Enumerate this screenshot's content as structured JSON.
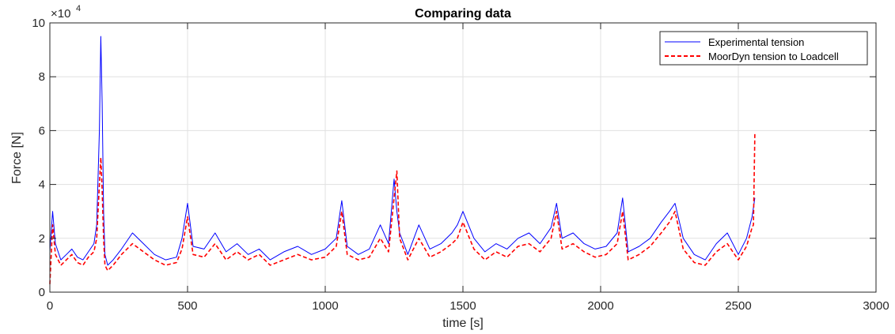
{
  "chart_data": {
    "type": "line",
    "title": "Comparing data",
    "xlabel": "time [s]",
    "ylabel": "Force [N]",
    "y_exponent_label": "×10",
    "y_exponent_power": "4",
    "xlim": [
      0,
      3000
    ],
    "ylim": [
      0,
      100000
    ],
    "xticks": [
      0,
      500,
      1000,
      1500,
      2000,
      2500,
      3000
    ],
    "xtick_labels": [
      "0",
      "500",
      "1000",
      "1500",
      "2000",
      "2500",
      "3000"
    ],
    "yticks": [
      0,
      20000,
      40000,
      60000,
      80000,
      100000
    ],
    "ytick_labels": [
      "0",
      "2",
      "4",
      "6",
      "8",
      "10"
    ],
    "grid": true,
    "legend_position": "top-right",
    "series": [
      {
        "name": "Experimental tension",
        "color": "#0000ff",
        "style": "solid",
        "x": [
          0,
          10,
          20,
          40,
          60,
          80,
          100,
          120,
          140,
          160,
          170,
          180,
          185,
          190,
          195,
          200,
          210,
          230,
          260,
          300,
          340,
          380,
          420,
          460,
          480,
          500,
          520,
          560,
          600,
          640,
          680,
          720,
          760,
          800,
          850,
          900,
          950,
          1000,
          1040,
          1060,
          1080,
          1120,
          1160,
          1200,
          1230,
          1250,
          1260,
          1270,
          1300,
          1340,
          1380,
          1420,
          1460,
          1480,
          1500,
          1540,
          1580,
          1620,
          1660,
          1700,
          1740,
          1780,
          1820,
          1840,
          1860,
          1900,
          1940,
          1980,
          2020,
          2060,
          2080,
          2100,
          2140,
          2180,
          2220,
          2250,
          2270,
          2300,
          2340,
          2380,
          2420,
          2460,
          2500,
          2530,
          2550,
          2560
        ],
        "y": [
          15000,
          30000,
          18000,
          12000,
          14000,
          16000,
          13000,
          12000,
          15000,
          18000,
          25000,
          60000,
          95000,
          70000,
          30000,
          14000,
          10000,
          12000,
          16000,
          22000,
          18000,
          14000,
          12000,
          13000,
          20000,
          33000,
          17000,
          16000,
          22000,
          15000,
          18000,
          14000,
          16000,
          12000,
          15000,
          17000,
          14000,
          16000,
          20000,
          34000,
          17000,
          14000,
          16000,
          25000,
          18000,
          42000,
          30000,
          22000,
          14000,
          25000,
          16000,
          18000,
          22000,
          25000,
          30000,
          20000,
          15000,
          18000,
          16000,
          20000,
          22000,
          18000,
          24000,
          33000,
          20000,
          22000,
          18000,
          16000,
          17000,
          22000,
          35000,
          15000,
          17000,
          20000,
          26000,
          30000,
          33000,
          20000,
          14000,
          12000,
          18000,
          22000,
          14000,
          20000,
          28000,
          35000
        ]
      },
      {
        "name": "MoorDyn tension to Loadcell",
        "color": "#ff0000",
        "style": "dashed",
        "x": [
          0,
          10,
          20,
          40,
          60,
          80,
          100,
          120,
          140,
          160,
          170,
          180,
          185,
          190,
          195,
          200,
          210,
          230,
          260,
          300,
          340,
          380,
          420,
          460,
          480,
          500,
          520,
          560,
          600,
          640,
          680,
          720,
          760,
          800,
          850,
          900,
          950,
          1000,
          1040,
          1060,
          1080,
          1120,
          1160,
          1200,
          1230,
          1250,
          1260,
          1270,
          1300,
          1340,
          1380,
          1420,
          1460,
          1480,
          1500,
          1540,
          1580,
          1620,
          1660,
          1700,
          1740,
          1780,
          1820,
          1840,
          1860,
          1900,
          1940,
          1980,
          2020,
          2060,
          2080,
          2100,
          2140,
          2180,
          2220,
          2250,
          2270,
          2300,
          2340,
          2380,
          2420,
          2460,
          2500,
          2530,
          2550,
          2555,
          2560
        ],
        "y": [
          3000,
          25000,
          14000,
          10000,
          12000,
          14000,
          11000,
          10000,
          13000,
          15000,
          20000,
          40000,
          50000,
          38000,
          20000,
          10000,
          8000,
          10000,
          14000,
          18000,
          15000,
          12000,
          10000,
          11000,
          16000,
          28000,
          14000,
          13000,
          18000,
          12000,
          15000,
          12000,
          14000,
          10000,
          12000,
          14000,
          12000,
          13000,
          17000,
          30000,
          14000,
          12000,
          13000,
          20000,
          15000,
          35000,
          45000,
          20000,
          12000,
          20000,
          13000,
          15000,
          18000,
          20000,
          26000,
          16000,
          12000,
          15000,
          13000,
          17000,
          18000,
          15000,
          20000,
          30000,
          16000,
          18000,
          15000,
          13000,
          14000,
          18000,
          30000,
          12000,
          14000,
          17000,
          22000,
          26000,
          30000,
          16000,
          11000,
          10000,
          15000,
          18000,
          12000,
          17000,
          24000,
          25000,
          59000
        ]
      }
    ]
  }
}
